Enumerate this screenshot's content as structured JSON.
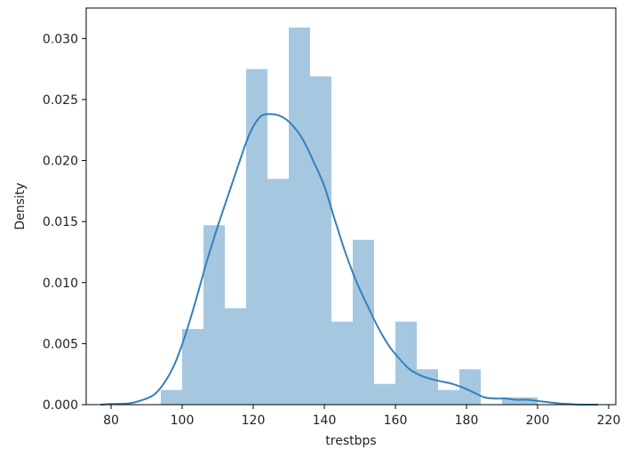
{
  "chart_data": {
    "type": "histogram",
    "xlabel": "trestbps",
    "ylabel": "Density",
    "xlim": [
      73,
      222
    ],
    "ylim": [
      0,
      0.0325
    ],
    "xticks": [
      80,
      100,
      120,
      140,
      160,
      180,
      200,
      220
    ],
    "yticks": [
      0.0,
      0.005,
      0.01,
      0.015,
      0.02,
      0.025,
      0.03
    ],
    "ytick_labels": [
      "0.000",
      "0.005",
      "0.010",
      "0.015",
      "0.020",
      "0.025",
      "0.030"
    ],
    "grid": false,
    "legend": "none",
    "bar_color": "#a6c7e0",
    "kde_color": "#3580bb",
    "bins": [
      {
        "x0": 94.0,
        "x1": 100.0,
        "density": 0.0012
      },
      {
        "x0": 100.0,
        "x1": 106.0,
        "density": 0.0062
      },
      {
        "x0": 106.0,
        "x1": 112.0,
        "density": 0.0147
      },
      {
        "x0": 112.0,
        "x1": 118.0,
        "density": 0.0079
      },
      {
        "x0": 118.0,
        "x1": 124.0,
        "density": 0.0275
      },
      {
        "x0": 124.0,
        "x1": 130.0,
        "density": 0.0185
      },
      {
        "x0": 130.0,
        "x1": 136.0,
        "density": 0.0309
      },
      {
        "x0": 136.0,
        "x1": 142.0,
        "density": 0.0269
      },
      {
        "x0": 142.0,
        "x1": 148.0,
        "density": 0.0068
      },
      {
        "x0": 148.0,
        "x1": 154.0,
        "density": 0.0135
      },
      {
        "x0": 154.0,
        "x1": 160.0,
        "density": 0.0017
      },
      {
        "x0": 160.0,
        "x1": 166.0,
        "density": 0.0068
      },
      {
        "x0": 166.0,
        "x1": 172.0,
        "density": 0.0029
      },
      {
        "x0": 172.0,
        "x1": 178.0,
        "density": 0.0012
      },
      {
        "x0": 178.0,
        "x1": 184.0,
        "density": 0.0029
      },
      {
        "x0": 184.0,
        "x1": 190.0,
        "density": 0.0
      },
      {
        "x0": 190.0,
        "x1": 196.0,
        "density": 0.0006
      },
      {
        "x0": 196.0,
        "x1": 200.0,
        "density": 0.0006
      }
    ],
    "kde": {
      "x": [
        77,
        80,
        85,
        88,
        92,
        95,
        98,
        101,
        104,
        107,
        110,
        113,
        116,
        119,
        122,
        125,
        128,
        131,
        134,
        137,
        140,
        143,
        146,
        149,
        152,
        155,
        158,
        161,
        164,
        167,
        170,
        173,
        176,
        179,
        182,
        185,
        188,
        191,
        194,
        197,
        200,
        203,
        206,
        209,
        212,
        217
      ],
      "y": [
        0.0,
        5e-05,
        0.0001,
        0.0003,
        0.0008,
        0.0018,
        0.0034,
        0.0058,
        0.0087,
        0.0118,
        0.0146,
        0.0172,
        0.0198,
        0.0222,
        0.0236,
        0.0238,
        0.0236,
        0.0229,
        0.0217,
        0.0199,
        0.0179,
        0.0151,
        0.0124,
        0.0101,
        0.0082,
        0.0064,
        0.0049,
        0.0038,
        0.0029,
        0.0024,
        0.0021,
        0.0019,
        0.0017,
        0.0014,
        0.001,
        0.0006,
        0.0005,
        0.0005,
        0.0004,
        0.0004,
        0.0003,
        0.0002,
        0.0001,
        5e-05,
        0.0,
        0.0
      ]
    }
  }
}
